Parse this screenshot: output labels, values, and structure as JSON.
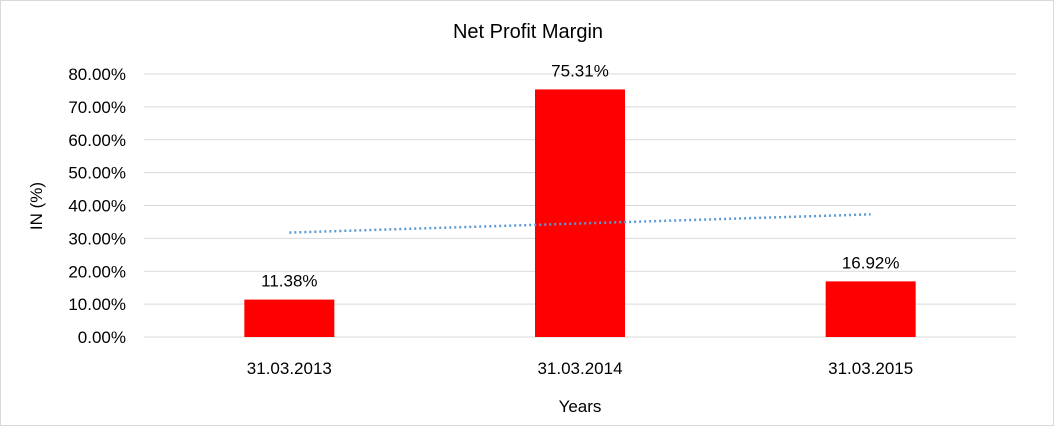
{
  "chart_data": {
    "type": "bar",
    "title": "Net Profit Margin",
    "xlabel": "Years",
    "ylabel": "IN (%)",
    "categories": [
      "31.03.2013",
      "31.03.2014",
      "31.03.2015"
    ],
    "values": [
      11.38,
      75.31,
      16.92
    ],
    "data_labels": [
      "11.38%",
      "75.31%",
      "16.92%"
    ],
    "ylim": [
      0,
      80
    ],
    "yticks": [
      "0.00%",
      "10.00%",
      "20.00%",
      "30.00%",
      "40.00%",
      "50.00%",
      "60.00%",
      "70.00%",
      "80.00%"
    ],
    "grid": true,
    "legend": "none",
    "trendline": {
      "type": "linear",
      "style": "dotted"
    },
    "colors": {
      "bar": "#ff0000",
      "trendline": "#5b9bd5",
      "grid": "#d9d9d9"
    }
  }
}
